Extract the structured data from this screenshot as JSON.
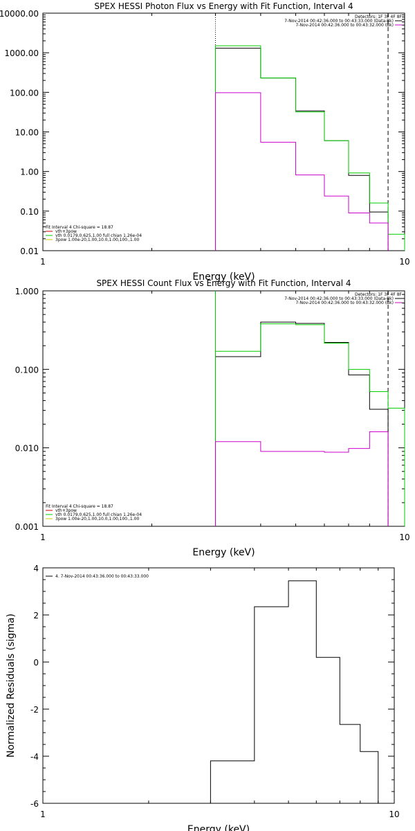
{
  "chart_data": [
    {
      "type": "line",
      "step": true,
      "title": "SPEX HESSI Photon Flux vs Energy with Fit Function, Interval 4",
      "xlabel": "Energy (keV)",
      "ylabel": "",
      "x_scale": "log",
      "y_scale": "log",
      "xlim": [
        1,
        10
      ],
      "ylim": [
        0.01,
        10000
      ],
      "x_ticks": [
        1,
        10
      ],
      "x_tick_labels": [
        "1",
        "10"
      ],
      "y_ticks": [
        0.01,
        0.1,
        1,
        10,
        100,
        1000,
        10000
      ],
      "y_tick_labels": [
        "0.01",
        "0.10",
        "1.00",
        "10.00",
        "100.00",
        "1000.00",
        "10000.00"
      ],
      "edges": [
        3,
        4,
        5,
        6,
        7,
        8,
        9,
        10
      ],
      "series": [
        {
          "color": "#000000",
          "values": [
            1300,
            230,
            34,
            6,
            0.8,
            0.095
          ]
        },
        {
          "color": "#00cc00",
          "values": [
            1500,
            230,
            32,
            6,
            0.92,
            0.16,
            0.026
          ]
        },
        {
          "color": "#cc00cc",
          "values": [
            98,
            5.5,
            0.82,
            0.24,
            0.09,
            0.05
          ]
        }
      ],
      "vlines": [
        {
          "x": 3,
          "style": "dotted",
          "color": "#000000"
        },
        {
          "x": 9,
          "style": "dashed",
          "color": "#000000"
        }
      ],
      "info": [
        {
          "text": "Detectors: 1F 3F 4F 8F",
          "color": "#000000"
        },
        {
          "text": "7-Nov-2014 00:42:36.000 to 00:43:33.000 (Data-Bk)",
          "color": "#000000",
          "swatch": "#000000"
        },
        {
          "text": "7-Nov-2014 00:42:36.000 to 00:43:32.000 (Bk)",
          "color": "#000000",
          "swatch": "#cc00cc"
        }
      ],
      "legend": [
        {
          "text": "Fit Interval 4   Chi-square = 18.87",
          "color": "#000000"
        },
        {
          "text": "vth+3pow",
          "color": "#cc0000",
          "swatch": "#cc0000"
        },
        {
          "text": "vth 0.0179,0.625,1.00  full chian 1.26e-04",
          "color": "#000000",
          "swatch": "#00cc00"
        },
        {
          "text": "3pow 1.00e-20,1.00,10.0,1.00,100.,1.00",
          "color": "#000000",
          "swatch": "#cccc00"
        }
      ]
    },
    {
      "type": "line",
      "step": true,
      "title": "SPEX HESSI Count Flux vs Energy with Fit Function, Interval 4",
      "xlabel": "Energy (keV)",
      "ylabel": "",
      "x_scale": "log",
      "y_scale": "log",
      "xlim": [
        1,
        10
      ],
      "ylim": [
        0.001,
        1
      ],
      "x_ticks": [
        1,
        10
      ],
      "x_tick_labels": [
        "1",
        "10"
      ],
      "y_ticks": [
        0.001,
        0.01,
        0.1,
        1
      ],
      "y_tick_labels": [
        "0.001",
        "0.010",
        "0.100",
        "1.000"
      ],
      "edges": [
        3,
        4,
        5,
        6,
        7,
        8,
        9,
        10
      ],
      "series": [
        {
          "color": "#000000",
          "values": [
            0.145,
            0.4,
            0.385,
            0.22,
            0.085,
            0.031
          ]
        },
        {
          "color": "#00cc00",
          "values": [
            0.17,
            0.38,
            0.37,
            0.215,
            0.1,
            0.052,
            0.032
          ]
        },
        {
          "color": "#cc00cc",
          "values": [
            0.012,
            0.009,
            0.009,
            0.0088,
            0.0098,
            0.016
          ]
        }
      ],
      "vlines": [
        {
          "x": 3,
          "style": "dotted",
          "color": "#000000"
        },
        {
          "x": 3,
          "style": "solid",
          "color": "#00cc00"
        },
        {
          "x": 9,
          "style": "dashed",
          "color": "#000000"
        }
      ],
      "info": [
        {
          "text": "Detectors: 1F 3F 4F 8F",
          "color": "#000000"
        },
        {
          "text": "7-Nov-2014 00:42:36.000 to 00:43:33.000 (Data-Bk)",
          "color": "#000000",
          "swatch": "#000000"
        },
        {
          "text": "7-Nov-2014 00:42:36.000 to 00:43:32.000 (Bk)",
          "color": "#000000",
          "swatch": "#cc00cc"
        }
      ],
      "legend": [
        {
          "text": "Fit Interval 4   Chi-square = 18.87",
          "color": "#000000"
        },
        {
          "text": "vth+3pow",
          "color": "#cc0000",
          "swatch": "#cc0000"
        },
        {
          "text": "vth 0.0179,0.625,1.00  full chian 1.26e-04",
          "color": "#000000",
          "swatch": "#00cc00"
        },
        {
          "text": "3pow 1.00e-20,1.00,10.0,1.00,100.,1.00",
          "color": "#000000",
          "swatch": "#cccc00"
        }
      ]
    },
    {
      "type": "line",
      "step": true,
      "title": "",
      "xlabel": "Energy (keV)",
      "ylabel": "Normalized Residuals (sigma)",
      "x_scale": "log",
      "y_scale": "linear",
      "xlim": [
        1,
        10
      ],
      "ylim": [
        -6,
        4
      ],
      "x_ticks": [
        1,
        10
      ],
      "x_tick_labels": [
        "1",
        "10"
      ],
      "y_ticks": [
        -6,
        -4,
        -2,
        0,
        2,
        4
      ],
      "y_tick_labels": [
        "-6",
        "-4",
        "-2",
        "0",
        "2",
        "4"
      ],
      "edges": [
        3,
        4,
        5,
        6,
        7,
        8,
        9
      ],
      "series": [
        {
          "color": "#000000",
          "values": [
            -4.2,
            2.35,
            3.45,
            0.2,
            -2.65,
            -3.8
          ]
        }
      ],
      "vlines": [],
      "info": [],
      "legend": [
        {
          "text": "4.  7-Nov-2014 00:43:36.000 to 00:43:33.000",
          "color": "#000000",
          "swatch": "#000000"
        }
      ]
    }
  ]
}
